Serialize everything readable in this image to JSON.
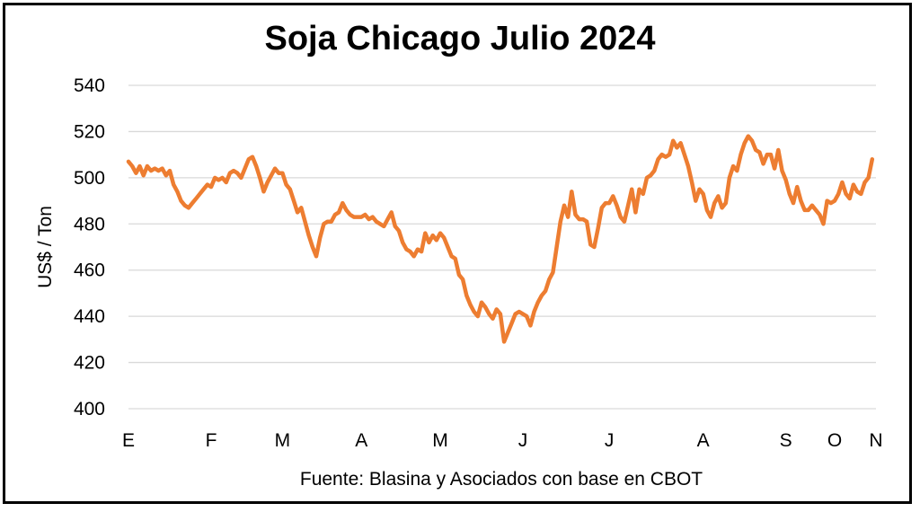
{
  "chart_data": {
    "type": "line",
    "title": "Soja Chicago Julio 2024",
    "ylabel": "US$ / Ton",
    "xlabel": "",
    "source": "Fuente: Blasina y Asociados con base en CBOT",
    "ylim": [
      400,
      540
    ],
    "yticks": [
      400,
      420,
      440,
      460,
      480,
      500,
      520,
      540
    ],
    "xticks": [
      {
        "label": "E",
        "x": 0
      },
      {
        "label": "F",
        "x": 22
      },
      {
        "label": "M",
        "x": 41
      },
      {
        "label": "A",
        "x": 62
      },
      {
        "label": "M",
        "x": 83
      },
      {
        "label": "J",
        "x": 105
      },
      {
        "label": "J",
        "x": 128
      },
      {
        "label": "A",
        "x": 153
      },
      {
        "label": "S",
        "x": 175
      },
      {
        "label": "O",
        "x": 188
      },
      {
        "label": "N",
        "x": 199
      }
    ],
    "xlim": [
      0,
      199
    ],
    "grid": true,
    "series": [
      {
        "color": "#ED7D31",
        "points": [
          [
            0,
            507
          ],
          [
            1,
            505
          ],
          [
            2,
            502
          ],
          [
            3,
            505
          ],
          [
            4,
            501
          ],
          [
            5,
            505
          ],
          [
            6,
            503
          ],
          [
            7,
            504
          ],
          [
            8,
            503
          ],
          [
            9,
            504
          ],
          [
            10,
            501
          ],
          [
            11,
            503
          ],
          [
            12,
            497
          ],
          [
            13,
            494
          ],
          [
            14,
            490
          ],
          [
            15,
            488
          ],
          [
            16,
            487
          ],
          [
            17,
            489
          ],
          [
            18,
            491
          ],
          [
            19,
            493
          ],
          [
            20,
            495
          ],
          [
            21,
            497
          ],
          [
            22,
            496
          ],
          [
            23,
            500
          ],
          [
            24,
            499
          ],
          [
            25,
            500
          ],
          [
            26,
            498
          ],
          [
            27,
            502
          ],
          [
            28,
            503
          ],
          [
            29,
            502
          ],
          [
            30,
            500
          ],
          [
            31,
            504
          ],
          [
            32,
            508
          ],
          [
            33,
            509
          ],
          [
            34,
            505
          ],
          [
            35,
            500
          ],
          [
            36,
            494
          ],
          [
            37,
            498
          ],
          [
            38,
            501
          ],
          [
            39,
            504
          ],
          [
            40,
            502
          ],
          [
            41,
            502
          ],
          [
            42,
            497
          ],
          [
            43,
            495
          ],
          [
            44,
            490
          ],
          [
            45,
            485
          ],
          [
            46,
            487
          ],
          [
            47,
            481
          ],
          [
            48,
            475
          ],
          [
            49,
            470
          ],
          [
            50,
            466
          ],
          [
            51,
            474
          ],
          [
            52,
            480
          ],
          [
            53,
            481
          ],
          [
            54,
            481
          ],
          [
            55,
            484
          ],
          [
            56,
            485
          ],
          [
            57,
            489
          ],
          [
            58,
            486
          ],
          [
            59,
            484
          ],
          [
            60,
            483
          ],
          [
            61,
            483
          ],
          [
            62,
            483
          ],
          [
            63,
            484
          ],
          [
            64,
            482
          ],
          [
            65,
            483
          ],
          [
            66,
            481
          ],
          [
            67,
            480
          ],
          [
            68,
            479
          ],
          [
            69,
            482
          ],
          [
            70,
            485
          ],
          [
            71,
            479
          ],
          [
            72,
            477
          ],
          [
            73,
            472
          ],
          [
            74,
            469
          ],
          [
            75,
            468
          ],
          [
            76,
            466
          ],
          [
            77,
            469
          ],
          [
            78,
            468
          ],
          [
            79,
            476
          ],
          [
            80,
            472
          ],
          [
            81,
            475
          ],
          [
            82,
            473
          ],
          [
            83,
            476
          ],
          [
            84,
            474
          ],
          [
            85,
            470
          ],
          [
            86,
            466
          ],
          [
            87,
            465
          ],
          [
            88,
            458
          ],
          [
            89,
            456
          ],
          [
            90,
            449
          ],
          [
            91,
            445
          ],
          [
            92,
            442
          ],
          [
            93,
            440
          ],
          [
            94,
            446
          ],
          [
            95,
            444
          ],
          [
            96,
            441
          ],
          [
            97,
            439
          ],
          [
            98,
            443
          ],
          [
            99,
            441
          ],
          [
            100,
            429
          ],
          [
            101,
            433
          ],
          [
            102,
            437
          ],
          [
            103,
            441
          ],
          [
            104,
            442
          ],
          [
            105,
            441
          ],
          [
            106,
            440
          ],
          [
            107,
            436
          ],
          [
            108,
            442
          ],
          [
            109,
            446
          ],
          [
            110,
            449
          ],
          [
            111,
            451
          ],
          [
            112,
            456
          ],
          [
            113,
            459
          ],
          [
            114,
            470
          ],
          [
            115,
            481
          ],
          [
            116,
            488
          ],
          [
            117,
            483
          ],
          [
            118,
            494
          ],
          [
            119,
            484
          ],
          [
            120,
            482
          ],
          [
            121,
            482
          ],
          [
            122,
            481
          ],
          [
            123,
            471
          ],
          [
            124,
            470
          ],
          [
            125,
            478
          ],
          [
            126,
            487
          ],
          [
            127,
            489
          ],
          [
            128,
            489
          ],
          [
            129,
            492
          ],
          [
            130,
            488
          ],
          [
            131,
            483
          ],
          [
            132,
            481
          ],
          [
            133,
            488
          ],
          [
            134,
            495
          ],
          [
            135,
            485
          ],
          [
            136,
            495
          ],
          [
            137,
            493
          ],
          [
            138,
            500
          ],
          [
            139,
            501
          ],
          [
            140,
            503
          ],
          [
            141,
            508
          ],
          [
            142,
            510
          ],
          [
            143,
            509
          ],
          [
            144,
            510
          ],
          [
            145,
            516
          ],
          [
            146,
            513
          ],
          [
            147,
            515
          ],
          [
            148,
            510
          ],
          [
            149,
            505
          ],
          [
            150,
            498
          ],
          [
            151,
            490
          ],
          [
            152,
            495
          ],
          [
            153,
            493
          ],
          [
            154,
            486
          ],
          [
            155,
            483
          ],
          [
            156,
            489
          ],
          [
            157,
            492
          ],
          [
            158,
            487
          ],
          [
            159,
            489
          ],
          [
            160,
            500
          ],
          [
            161,
            505
          ],
          [
            162,
            503
          ],
          [
            163,
            510
          ],
          [
            164,
            515
          ],
          [
            165,
            518
          ],
          [
            166,
            516
          ],
          [
            167,
            512
          ],
          [
            168,
            511
          ],
          [
            169,
            506
          ],
          [
            170,
            510
          ],
          [
            171,
            510
          ],
          [
            172,
            504
          ],
          [
            173,
            512
          ],
          [
            174,
            503
          ],
          [
            175,
            499
          ],
          [
            176,
            493
          ],
          [
            177,
            489
          ],
          [
            178,
            496
          ],
          [
            179,
            490
          ],
          [
            180,
            486
          ],
          [
            181,
            486
          ],
          [
            182,
            488
          ],
          [
            183,
            486
          ],
          [
            184,
            484
          ],
          [
            185,
            480
          ],
          [
            186,
            490
          ],
          [
            187,
            489
          ],
          [
            188,
            490
          ],
          [
            189,
            493
          ],
          [
            190,
            498
          ],
          [
            191,
            493
          ],
          [
            192,
            491
          ],
          [
            193,
            497
          ],
          [
            194,
            494
          ],
          [
            195,
            493
          ],
          [
            196,
            498
          ],
          [
            197,
            500
          ],
          [
            198,
            508
          ]
        ]
      }
    ]
  }
}
